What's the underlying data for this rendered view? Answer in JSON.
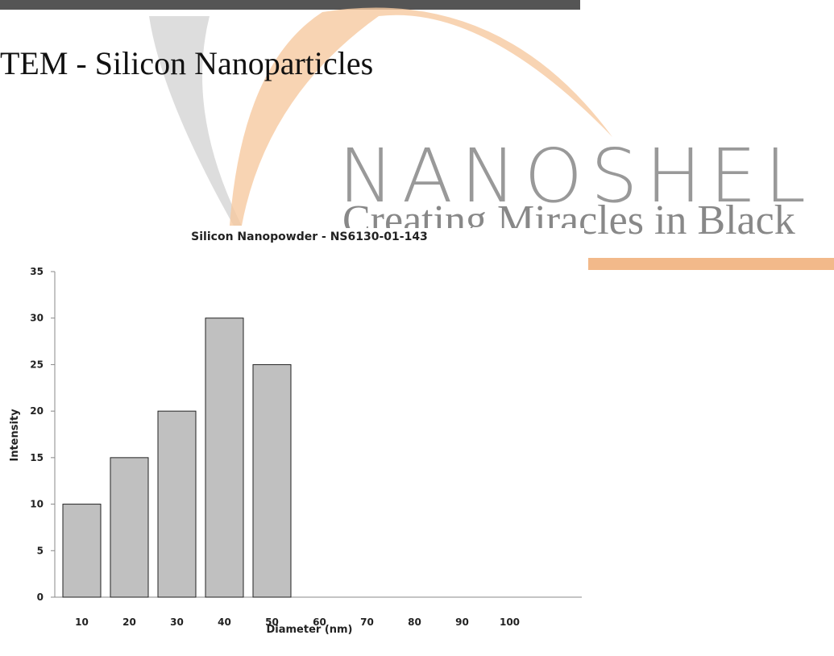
{
  "heading": "TEM - Silicon Nanoparticles",
  "watermark": {
    "brand": "NANOSHEL",
    "tagline": "Creating Miracles in Black"
  },
  "chart_data": {
    "type": "bar",
    "title": "Silicon Nanopowder - NS6130-01-143",
    "x_label": "Diameter (nm)",
    "y_label": "Intensity",
    "categories": [
      "10",
      "20",
      "30",
      "40",
      "50",
      "60",
      "70",
      "80",
      "90",
      "100"
    ],
    "values": [
      10,
      15,
      20,
      30,
      25,
      0,
      0,
      0,
      0,
      0
    ],
    "color": "#c0c0c0",
    "ylim": [
      0,
      35
    ],
    "yticks": [
      0,
      5,
      10,
      15,
      20,
      25,
      30,
      35
    ],
    "grid": false
  }
}
